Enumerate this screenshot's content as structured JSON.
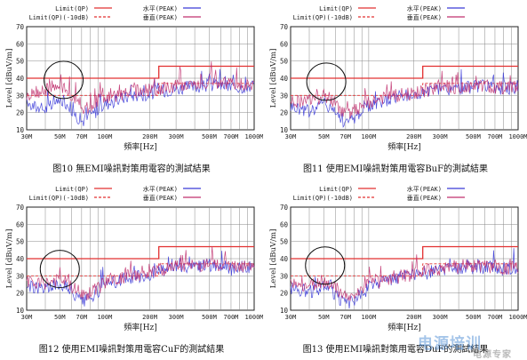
{
  "charts": [
    {
      "caption": "图10  無EMI噪訊對策用電容的測試結果",
      "chart_data": {
        "type": "line",
        "ylabel": "Level [dBuV/m]",
        "xlabel": "頻率[Hz]",
        "x_scale": "log",
        "xlim_mhz": [
          30,
          1000
        ],
        "ylim": [
          10,
          70
        ],
        "yticks": [
          "10",
          "20",
          "30",
          "40",
          "50",
          "60",
          "70"
        ],
        "xticks": [
          "30M",
          "50M",
          "70M",
          "100M",
          "200M",
          "300M",
          "500M",
          "700M",
          "1000M"
        ],
        "legend": [
          "Limit(QP)",
          "Limit(QP)(-10dB)",
          "水平(PEAK)",
          "垂直(PEAK)"
        ],
        "limits": {
          "qp_low": 40,
          "qp_high": 47,
          "step_mhz": 230
        },
        "series": [
          {
            "name": "水平(PEAK)",
            "x_mhz": [
              30,
              35,
              40,
              45,
              50,
              55,
              60,
              65,
              70,
              80,
              90,
              100,
              120,
              150,
              200,
              250,
              300,
              400,
              500,
              600,
              700,
              800,
              1000
            ],
            "values": [
              25,
              23,
              22,
              24,
              27,
              26,
              22,
              18,
              15,
              18,
              22,
              25,
              27,
              30,
              31,
              33,
              34,
              35,
              36,
              36,
              35,
              35,
              36
            ]
          },
          {
            "name": "垂直(PEAK)",
            "x_mhz": [
              30,
              35,
              40,
              45,
              50,
              55,
              60,
              65,
              70,
              80,
              90,
              100,
              120,
              150,
              200,
              250,
              300,
              400,
              500,
              600,
              700,
              800,
              1000
            ],
            "values": [
              30,
              32,
              33,
              34,
              35,
              33,
              30,
              26,
              22,
              24,
              27,
              28,
              30,
              32,
              33,
              34,
              36,
              37,
              38,
              37,
              36,
              36,
              37
            ]
          }
        ],
        "circle_center_mhz": 53,
        "circle_center_db": 39
      }
    },
    {
      "caption": "图11  使用EMI噪訊對策用電容BuF的測試結果",
      "chart_data": {
        "type": "line",
        "ylabel": "Level [dBuV/m]",
        "xlabel": "頻率[Hz]",
        "x_scale": "log",
        "xlim_mhz": [
          30,
          1000
        ],
        "ylim": [
          10,
          70
        ],
        "yticks": [
          "10",
          "20",
          "30",
          "40",
          "50",
          "60",
          "70"
        ],
        "xticks": [
          "30M",
          "50M",
          "70M",
          "100M",
          "200M",
          "300M",
          "500M",
          "700M",
          "1000M"
        ],
        "legend": [
          "Limit(QP)",
          "Limit(QP)(-10dB)",
          "水平(PEAK)",
          "垂直(PEAK)"
        ],
        "limits": {
          "qp_low": 40,
          "qp_high": 47,
          "step_mhz": 230
        },
        "series": [
          {
            "name": "水平(PEAK)",
            "x_mhz": [
              30,
              35,
              40,
              45,
              50,
              55,
              60,
              65,
              70,
              80,
              90,
              100,
              120,
              150,
              200,
              250,
              300,
              400,
              500,
              600,
              700,
              800,
              1000
            ],
            "values": [
              24,
              22,
              21,
              23,
              25,
              24,
              20,
              17,
              14,
              17,
              21,
              24,
              26,
              29,
              30,
              32,
              33,
              34,
              35,
              35,
              34,
              34,
              35
            ]
          },
          {
            "name": "垂直(PEAK)",
            "x_mhz": [
              30,
              35,
              40,
              45,
              50,
              55,
              60,
              65,
              70,
              80,
              90,
              100,
              120,
              150,
              200,
              250,
              300,
              400,
              500,
              600,
              700,
              800,
              1000
            ],
            "values": [
              27,
              26,
              27,
              28,
              29,
              28,
              25,
              22,
              19,
              21,
              24,
              26,
              28,
              30,
              31,
              33,
              34,
              35,
              36,
              35,
              35,
              34,
              35
            ]
          }
        ],
        "circle_center_mhz": 52,
        "circle_center_db": 38
      }
    },
    {
      "caption": "图12  使用EMI噪訊對策用電容CuF的測試結果",
      "chart_data": {
        "type": "line",
        "ylabel": "Level [dBuV/m]",
        "xlabel": "頻率[Hz]",
        "x_scale": "log",
        "xlim_mhz": [
          30,
          1000
        ],
        "ylim": [
          10,
          70
        ],
        "yticks": [
          "10",
          "20",
          "30",
          "40",
          "50",
          "60",
          "70"
        ],
        "xticks": [
          "30M",
          "50M",
          "70M",
          "100M",
          "200M",
          "300M",
          "500M",
          "700M",
          "1000M"
        ],
        "legend": [
          "Limit(QP)",
          "Limit(QP)(-10dB)",
          "水平(PEAK)",
          "垂直(PEAK)"
        ],
        "limits": {
          "qp_low": 40,
          "qp_high": 47,
          "step_mhz": 230
        },
        "series": [
          {
            "name": "水平(PEAK)",
            "x_mhz": [
              30,
              35,
              40,
              45,
              50,
              55,
              60,
              65,
              70,
              80,
              90,
              100,
              120,
              150,
              200,
              250,
              300,
              400,
              500,
              600,
              700,
              800,
              1000
            ],
            "values": [
              24,
              23,
              22,
              24,
              26,
              24,
              20,
              17,
              14,
              17,
              21,
              24,
              27,
              29,
              31,
              33,
              34,
              35,
              36,
              35,
              34,
              35,
              36
            ]
          },
          {
            "name": "垂直(PEAK)",
            "x_mhz": [
              30,
              35,
              40,
              45,
              50,
              55,
              60,
              65,
              70,
              80,
              90,
              100,
              120,
              150,
              200,
              250,
              300,
              400,
              500,
              600,
              700,
              800,
              1000
            ],
            "values": [
              26,
              25,
              26,
              27,
              28,
              27,
              24,
              21,
              18,
              20,
              23,
              26,
              28,
              30,
              32,
              34,
              35,
              36,
              37,
              36,
              35,
              35,
              36
            ]
          }
        ],
        "circle_center_mhz": 50,
        "circle_center_db": 34
      }
    },
    {
      "caption": "图13  使用EMI噪訊對策用電容DuF的測試結果",
      "chart_data": {
        "type": "line",
        "ylabel": "Level [dBuV/m]",
        "xlabel": "頻率[Hz]",
        "x_scale": "log",
        "xlim_mhz": [
          30,
          1000
        ],
        "ylim": [
          10,
          70
        ],
        "yticks": [
          "10",
          "20",
          "30",
          "40",
          "50",
          "60",
          "70"
        ],
        "xticks": [
          "30M",
          "50M",
          "70M",
          "100M",
          "200M",
          "300M",
          "500M",
          "700M",
          "1000M"
        ],
        "legend": [
          "Limit(QP)",
          "Limit(QP)(-10dB)",
          "水平(PEAK)",
          "垂直(PEAK)"
        ],
        "limits": {
          "qp_low": 40,
          "qp_high": 47,
          "step_mhz": 230
        },
        "series": [
          {
            "name": "水平(PEAK)",
            "x_mhz": [
              30,
              35,
              40,
              45,
              50,
              55,
              60,
              65,
              70,
              80,
              90,
              100,
              120,
              150,
              200,
              250,
              300,
              400,
              500,
              600,
              700,
              800,
              1000
            ],
            "values": [
              23,
              22,
              21,
              22,
              24,
              23,
              19,
              16,
              13,
              16,
              20,
              23,
              26,
              29,
              30,
              32,
              33,
              34,
              35,
              35,
              34,
              34,
              35
            ]
          },
          {
            "name": "垂直(PEAK)",
            "x_mhz": [
              30,
              35,
              40,
              45,
              50,
              55,
              60,
              65,
              70,
              80,
              90,
              100,
              120,
              150,
              200,
              250,
              300,
              400,
              500,
              600,
              700,
              800,
              1000
            ],
            "values": [
              25,
              24,
              25,
              26,
              27,
              26,
              23,
              20,
              17,
              19,
              22,
              25,
              27,
              29,
              31,
              33,
              34,
              35,
              36,
              35,
              35,
              34,
              35
            ]
          }
        ],
        "circle_center_mhz": 51,
        "circle_center_db": 36
      }
    }
  ],
  "colors": {
    "limit": "#e23030",
    "horizontal": "#3a3ad8",
    "vertical": "#c0306e",
    "grid": "#888888"
  },
  "watermark": {
    "main": "电源培训",
    "sub": "电源专家"
  }
}
